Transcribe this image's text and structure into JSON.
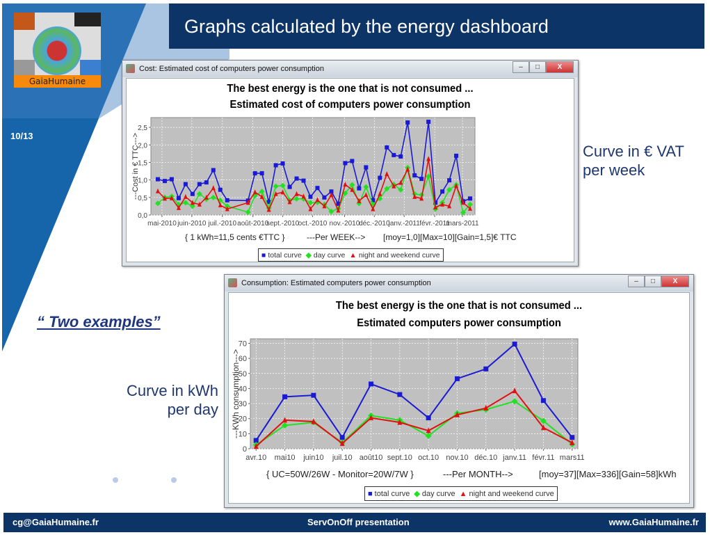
{
  "slide": {
    "title": "Graphs calculated by the energy dashboard",
    "page_number": "10/13",
    "logo_text": "GaiaHumaine",
    "two_examples": "“ Two examples”",
    "note_top": [
      "Curve in € VAT",
      "per week"
    ],
    "note_bottom": [
      "Curve in kWh",
      "per day"
    ],
    "footer": {
      "left": "cg@GaiaHumaine.fr",
      "center": "ServOnOff presentation",
      "right": "www.GaiaHumaine.fr"
    },
    "colors": {
      "navy": "#0c3466",
      "blue_deco": "#2a72b5",
      "light_blue": "#a9c5e2",
      "text": "#1f3770"
    }
  },
  "windows": [
    {
      "title": "Cost: Estimated cost of computers power consumption",
      "minimize": "–",
      "maximize": "□",
      "close": "X"
    },
    {
      "title": "Consumption: Estimated computers power consumption",
      "minimize": "–",
      "maximize": "□",
      "close": "X"
    }
  ],
  "chart_data": [
    {
      "type": "line",
      "title": [
        "The best energy is the one that is not consumed ...",
        "Estimated cost of computers power consumption"
      ],
      "ylabel": "---Cost in € TTC--->",
      "xlabel": "---Per WEEK-->",
      "footer_left": "{ 1 kWh=11,5 cents €TTC }",
      "footer_right": "[moy=1,0][Max=10][Gain=1,5]€ TTC",
      "ylim": [
        0,
        2.78
      ],
      "xlim": [
        -1,
        45.7
      ],
      "y_ticks": [
        0,
        0.5,
        1.0,
        1.5,
        2.0,
        2.5
      ],
      "y_tick_labels": [
        "0,0",
        "0,5",
        "1,0",
        "1,5",
        "2,0",
        "2,5"
      ],
      "x_ticks": [
        {
          "label": "mai-2010",
          "at": 0.6
        },
        {
          "label": "juin-2010",
          "at": 4.9
        },
        {
          "label": "juil.-2010",
          "at": 9.3
        },
        {
          "label": "août-2010",
          "at": 13.7
        },
        {
          "label": "sept.-2010",
          "at": 18
        },
        {
          "label": "oct.-2010",
          "at": 22.3
        },
        {
          "label": "nov.-2010",
          "at": 26.9
        },
        {
          "label": "déc.-2010",
          "at": 31.2
        },
        {
          "label": "janv.-2011",
          "at": 35.5
        },
        {
          "label": "févr.-2011",
          "at": 39.9
        },
        {
          "label": "mars-2011",
          "at": 43.9
        }
      ],
      "x": [
        0,
        1,
        2,
        3,
        4,
        5,
        6,
        7,
        8,
        9,
        10,
        13,
        14,
        15,
        16,
        17,
        18,
        19,
        20,
        21,
        22,
        23,
        24,
        25,
        26,
        27,
        28,
        29,
        30,
        31,
        32,
        33,
        34,
        35,
        36,
        37,
        38,
        39,
        40,
        41,
        42,
        43,
        44,
        45
      ],
      "series": [
        {
          "name": "total curve",
          "color": "#1a1ad2",
          "marker": "square",
          "values": [
            1.02,
            0.97,
            1.02,
            0.48,
            0.88,
            0.6,
            0.88,
            0.93,
            1.28,
            0.72,
            0.42,
            0.41,
            1.19,
            1.19,
            0.37,
            1.42,
            1.47,
            0.8,
            1.04,
            0.98,
            0.52,
            0.77,
            0.5,
            0.67,
            0.32,
            1.48,
            1.54,
            0.76,
            1.36,
            0.42,
            1.06,
            1.93,
            1.71,
            1.67,
            2.64,
            1.13,
            1.03,
            2.66,
            0.35,
            0.67,
            0.99,
            1.69,
            0.39,
            0.47
          ]
        },
        {
          "name": "day curve",
          "color": "#22e022",
          "marker": "diamond",
          "values": [
            0.33,
            0.5,
            0.53,
            0.3,
            0.35,
            0.25,
            0.6,
            0.45,
            0.5,
            0.42,
            0.25,
            0.08,
            0.55,
            0.67,
            0.2,
            0.82,
            0.84,
            0.42,
            0.46,
            0.46,
            0.35,
            0.36,
            0.3,
            0.1,
            0.18,
            0.62,
            0.86,
            0.33,
            0.8,
            0.3,
            0.47,
            0.75,
            0.87,
            0.72,
            1.35,
            0.6,
            0.57,
            1.1,
            0.17,
            0.35,
            0.72,
            0.86,
            0.07,
            0.3
          ]
        },
        {
          "name": "night and weekend curve",
          "color": "#e01010",
          "marker": "triangle",
          "values": [
            0.68,
            0.47,
            0.48,
            0.2,
            0.52,
            0.35,
            0.3,
            0.5,
            0.77,
            0.28,
            0.17,
            0.35,
            0.65,
            0.52,
            0.15,
            0.6,
            0.65,
            0.37,
            0.6,
            0.53,
            0.17,
            0.43,
            0.25,
            0.57,
            0.13,
            0.87,
            0.72,
            0.4,
            0.57,
            0.17,
            0.6,
            1.17,
            0.82,
            0.92,
            1.3,
            0.52,
            0.47,
            1.6,
            0.22,
            0.3,
            0.25,
            0.83,
            0.35,
            0.18
          ]
        }
      ],
      "grid": true,
      "legend": "bottom"
    },
    {
      "type": "line",
      "title": [
        "The best energy is the one that is not consumed ...",
        "Estimated computers power consumption"
      ],
      "ylabel": "---KWh consumption--->",
      "xlabel": "---Per MONTH-->",
      "footer_left": "{ UC=50W/26W - Monitor=20W/7W }",
      "footer_right": "[moy=37][Max=336][Gain=58]kWh",
      "ylim": [
        0,
        73
      ],
      "xlim": [
        -0.2,
        11.2
      ],
      "y_ticks": [
        0,
        10,
        20,
        30,
        40,
        50,
        60,
        70
      ],
      "y_tick_labels": [
        "0",
        "10",
        "20",
        "30",
        "40",
        "50",
        "60",
        "70"
      ],
      "categories": [
        "avr.10",
        "mai10",
        "juin10",
        "juil.10",
        "août10",
        "sept.10",
        "oct.10",
        "nov.10",
        "déc.10",
        "janv.11",
        "févr.11",
        "mars11"
      ],
      "series": [
        {
          "name": "total curve",
          "color": "#1a1ad2",
          "marker": "square",
          "values": [
            5.5,
            34.5,
            35.5,
            7.5,
            43,
            36,
            20.5,
            46.5,
            53,
            69.5,
            32,
            7.5
          ]
        },
        {
          "name": "day curve",
          "color": "#22e022",
          "marker": "diamond",
          "values": [
            2.5,
            15.5,
            17.5,
            4,
            22,
            19,
            8.5,
            23.5,
            26,
            31.5,
            18.5,
            3
          ]
        },
        {
          "name": "night and weekend curve",
          "color": "#e01010",
          "marker": "triangle",
          "values": [
            1.5,
            19,
            18,
            3.5,
            20.5,
            17.5,
            12,
            22.5,
            27,
            38.5,
            14,
            4
          ]
        }
      ],
      "grid": true,
      "legend": "bottom"
    }
  ]
}
